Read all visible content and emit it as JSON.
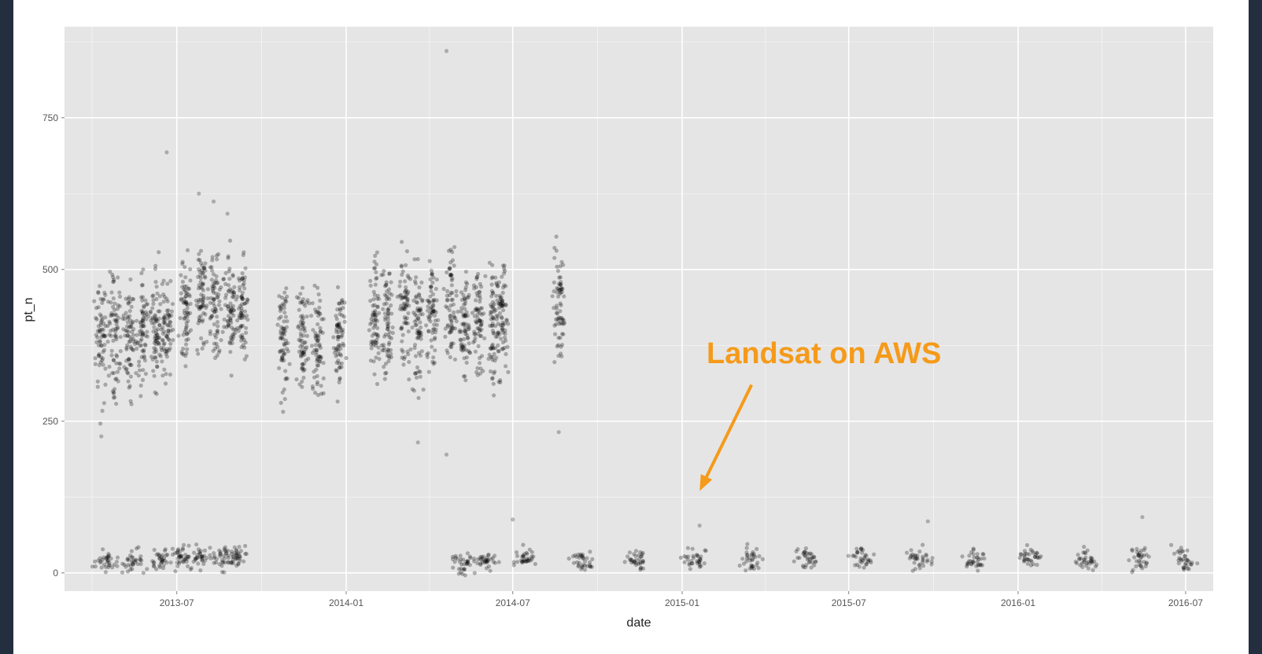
{
  "chart_data": {
    "type": "scatter",
    "title": "",
    "xlabel": "date",
    "ylabel": "pt_n",
    "x_range": [
      "2013-03-01",
      "2016-07-31"
    ],
    "ylim": [
      -30,
      900
    ],
    "x_ticks": [
      "2013-07",
      "2014-01",
      "2014-07",
      "2015-01",
      "2015-07",
      "2016-01",
      "2016-07"
    ],
    "y_ticks": [
      0,
      250,
      500,
      750
    ],
    "grid": true,
    "legend": "none",
    "colors": {
      "panel": "#e5e5e5",
      "grid": "#ffffff",
      "points": "#000000",
      "annotation": "#f59a1a"
    },
    "annotation": {
      "text": "Landsat on AWS",
      "arrow_to": {
        "x": "2015-01-20",
        "y": 135
      }
    },
    "series": [
      {
        "clusters": [
          {
            "x": "2013-04-10",
            "y": 380
          },
          {
            "x": "2013-04-25",
            "y": 390
          },
          {
            "x": "2013-05-10",
            "y": 385
          },
          {
            "x": "2013-05-25",
            "y": 395
          },
          {
            "x": "2013-06-08",
            "y": 400
          },
          {
            "x": "2013-06-20",
            "y": 405
          },
          {
            "x": "2013-07-10",
            "y": 440
          },
          {
            "x": "2013-07-28",
            "y": 450
          },
          {
            "x": "2013-08-12",
            "y": 440
          },
          {
            "x": "2013-08-28",
            "y": 430
          },
          {
            "x": "2013-09-10",
            "y": 440
          },
          {
            "x": "2013-10-25",
            "y": 390
          },
          {
            "x": "2013-11-15",
            "y": 390
          },
          {
            "x": "2013-12-01",
            "y": 370
          },
          {
            "x": "2013-12-25",
            "y": 395
          },
          {
            "x": "2014-02-01",
            "y": 415
          },
          {
            "x": "2014-02-15",
            "y": 410
          },
          {
            "x": "2014-03-05",
            "y": 440
          },
          {
            "x": "2014-03-20",
            "y": 410
          },
          {
            "x": "2014-04-05",
            "y": 430
          },
          {
            "x": "2014-04-25",
            "y": 440
          },
          {
            "x": "2014-05-10",
            "y": 410
          },
          {
            "x": "2014-05-25",
            "y": 415
          },
          {
            "x": "2014-06-10",
            "y": 410
          },
          {
            "x": "2014-06-20",
            "y": 420
          },
          {
            "x": "2014-08-20",
            "y": 440
          },
          {
            "x": "2013-04-15",
            "y": 18
          },
          {
            "x": "2013-05-15",
            "y": 18
          },
          {
            "x": "2013-06-15",
            "y": 20
          },
          {
            "x": "2013-07-05",
            "y": 25
          },
          {
            "x": "2013-07-25",
            "y": 25
          },
          {
            "x": "2013-08-20",
            "y": 25
          },
          {
            "x": "2013-09-05",
            "y": 25
          },
          {
            "x": "2014-05-10",
            "y": 18
          },
          {
            "x": "2014-06-01",
            "y": 20
          },
          {
            "x": "2014-07-15",
            "y": 22
          },
          {
            "x": "2014-09-15",
            "y": 22
          },
          {
            "x": "2014-11-15",
            "y": 20
          },
          {
            "x": "2015-01-15",
            "y": 22
          },
          {
            "x": "2015-03-15",
            "y": 24
          },
          {
            "x": "2015-05-15",
            "y": 25
          },
          {
            "x": "2015-07-15",
            "y": 26
          },
          {
            "x": "2015-09-15",
            "y": 24
          },
          {
            "x": "2015-11-15",
            "y": 22
          },
          {
            "x": "2016-01-15",
            "y": 24
          },
          {
            "x": "2016-03-15",
            "y": 22
          },
          {
            "x": "2016-05-15",
            "y": 24
          },
          {
            "x": "2016-07-01",
            "y": 22
          }
        ],
        "outliers": [
          {
            "x": "2014-04-20",
            "y": 860
          },
          {
            "x": "2013-06-20",
            "y": 693
          },
          {
            "x": "2013-07-25",
            "y": 625
          },
          {
            "x": "2013-08-10",
            "y": 612
          },
          {
            "x": "2013-08-25",
            "y": 592
          },
          {
            "x": "2014-04-20",
            "y": 195
          },
          {
            "x": "2014-08-20",
            "y": 232
          },
          {
            "x": "2014-03-20",
            "y": 215
          },
          {
            "x": "2013-04-10",
            "y": 225
          },
          {
            "x": "2016-05-15",
            "y": 92
          },
          {
            "x": "2015-09-25",
            "y": 85
          },
          {
            "x": "2014-07-01",
            "y": 88
          },
          {
            "x": "2015-01-20",
            "y": 78
          }
        ]
      }
    ]
  }
}
